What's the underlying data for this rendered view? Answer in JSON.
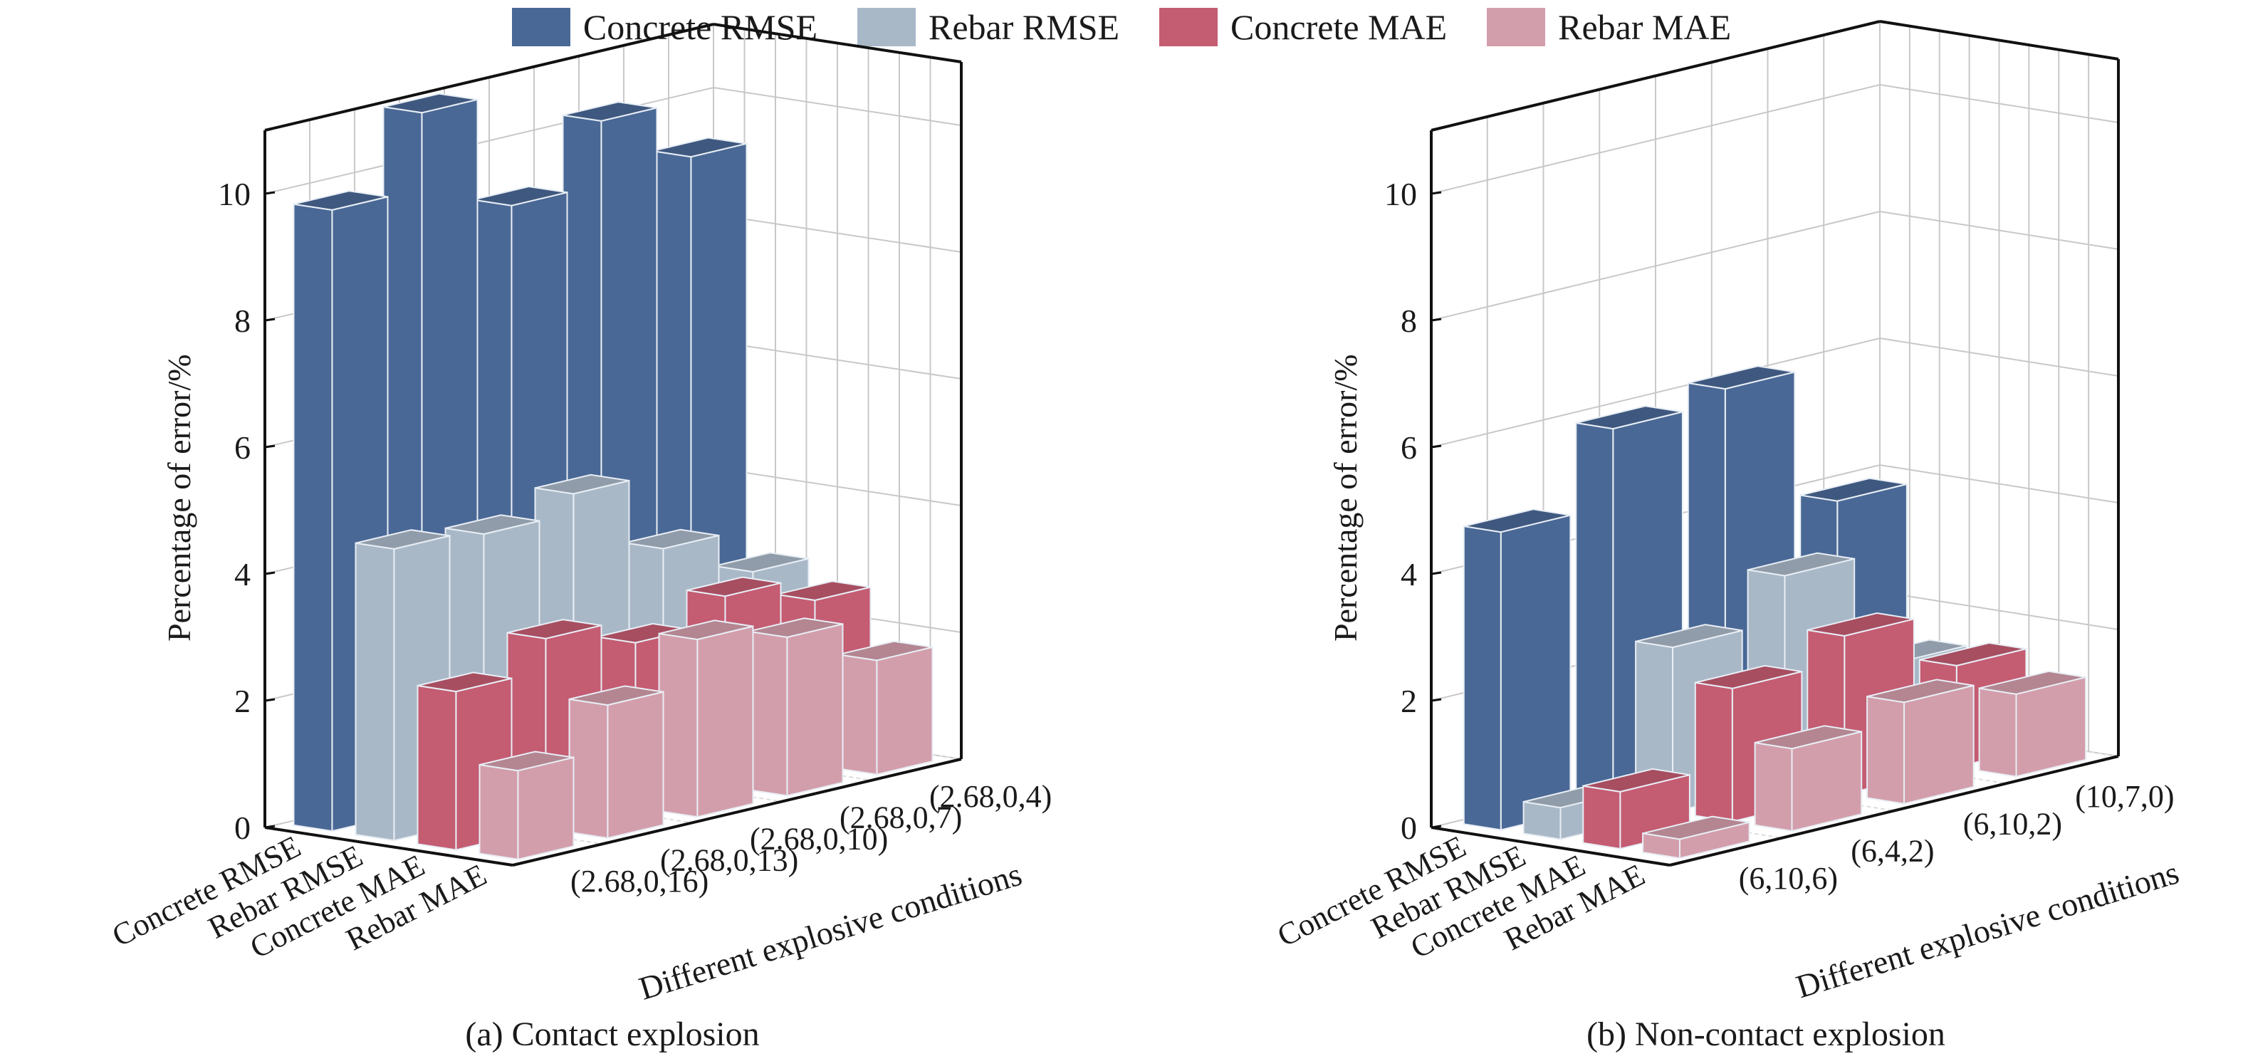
{
  "legend": {
    "items": [
      {
        "label": "Concrete RMSE",
        "color": "#4a6895"
      },
      {
        "label": "Rebar RMSE",
        "color": "#a9b8c7"
      },
      {
        "label": "Concrete MAE",
        "color": "#c45c72"
      },
      {
        "label": "Rebar MAE",
        "color": "#d39eab"
      }
    ]
  },
  "captions": {
    "a": "(a) Contact explosion",
    "b": "(b) Non-contact explosion"
  },
  "chart_data": [
    {
      "type": "bar",
      "subtype": "3d-bar",
      "title": "(a) Contact explosion",
      "ylabel": "Percentage of error/%",
      "xlabel": "Different explosive conditions",
      "ylim": [
        0,
        11
      ],
      "yticks": [
        0,
        2,
        4,
        6,
        8,
        10
      ],
      "grid": true,
      "legend_position": "top",
      "categories": [
        "(2.68,0,16)",
        "(2.68,0,13)",
        "(2.68,0,10)",
        "(2.68,0,7)",
        "(2.68,0,4)"
      ],
      "series": [
        {
          "name": "Concrete RMSE",
          "values": [
            9.8,
            11.0,
            9.2,
            10.2,
            9.3
          ]
        },
        {
          "name": "Rebar RMSE",
          "values": [
            4.6,
            4.5,
            4.8,
            3.6,
            2.9
          ]
        },
        {
          "name": "Concrete MAE",
          "values": [
            2.5,
            3.0,
            2.6,
            3.0,
            2.6
          ]
        },
        {
          "name": "Rebar MAE",
          "values": [
            1.4,
            2.1,
            2.8,
            2.5,
            1.8
          ]
        }
      ]
    },
    {
      "type": "bar",
      "subtype": "3d-bar",
      "title": "(b) Non-contact explosion",
      "ylabel": "Percentage of error/%",
      "xlabel": "Different explosive conditions",
      "ylim": [
        0,
        11
      ],
      "yticks": [
        0,
        2,
        4,
        6,
        8,
        10
      ],
      "grid": true,
      "legend_position": "top",
      "categories": [
        "(6,10,6)",
        "(6,4,2)",
        "(6,10,2)",
        "(10,7,0)"
      ],
      "series": [
        {
          "name": "Concrete RMSE",
          "values": [
            4.7,
            5.9,
            6.1,
            3.9
          ]
        },
        {
          "name": "Rebar RMSE",
          "values": [
            0.5,
            2.6,
            3.3,
            1.5
          ]
        },
        {
          "name": "Concrete MAE",
          "values": [
            0.9,
            2.1,
            2.5,
            1.6
          ]
        },
        {
          "name": "Rebar MAE",
          "values": [
            0.3,
            1.3,
            1.6,
            1.3
          ]
        }
      ]
    }
  ]
}
